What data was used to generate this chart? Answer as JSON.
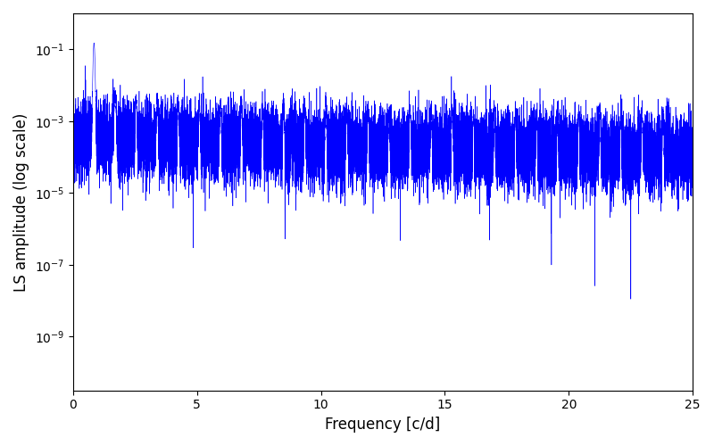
{
  "title": "",
  "xlabel": "Frequency [c/d]",
  "ylabel": "LS amplitude (log scale)",
  "line_color": "blue",
  "xlim": [
    0,
    25
  ],
  "ylim_log": [
    -10.5,
    0
  ],
  "background_color": "#ffffff",
  "figsize": [
    8.0,
    5.0
  ],
  "dpi": 100,
  "freq_min": 0.0,
  "freq_max": 25.0,
  "n_points": 20000,
  "seed": 12345
}
